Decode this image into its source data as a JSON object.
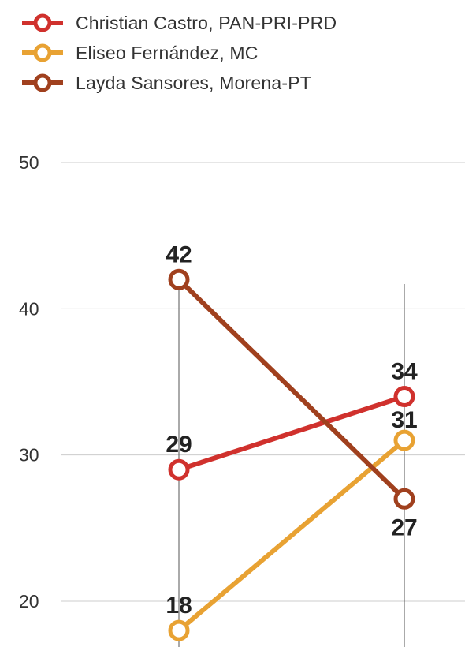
{
  "chart_data": {
    "type": "line",
    "categories": [
      "",
      ""
    ],
    "series": [
      {
        "name": "Christian Castro, PAN-PRI-PRD",
        "values": [
          29,
          34
        ],
        "color": "#d0312d",
        "labels": [
          "29",
          "34"
        ]
      },
      {
        "name": "Eliseo Fernández, MC",
        "values": [
          18,
          31
        ],
        "color": "#e8a233",
        "labels": [
          "18",
          "31"
        ]
      },
      {
        "name": "Layda Sansores, Morena-PT",
        "values": [
          42,
          27
        ],
        "color": "#a0401e",
        "labels": [
          "42",
          "27"
        ]
      }
    ],
    "yticks": [
      20,
      30,
      40,
      50
    ],
    "ytick_labels": [
      "20",
      "30",
      "40",
      "50"
    ],
    "ylim": [
      18,
      50
    ],
    "grid": true,
    "legend_position": "top-left"
  }
}
